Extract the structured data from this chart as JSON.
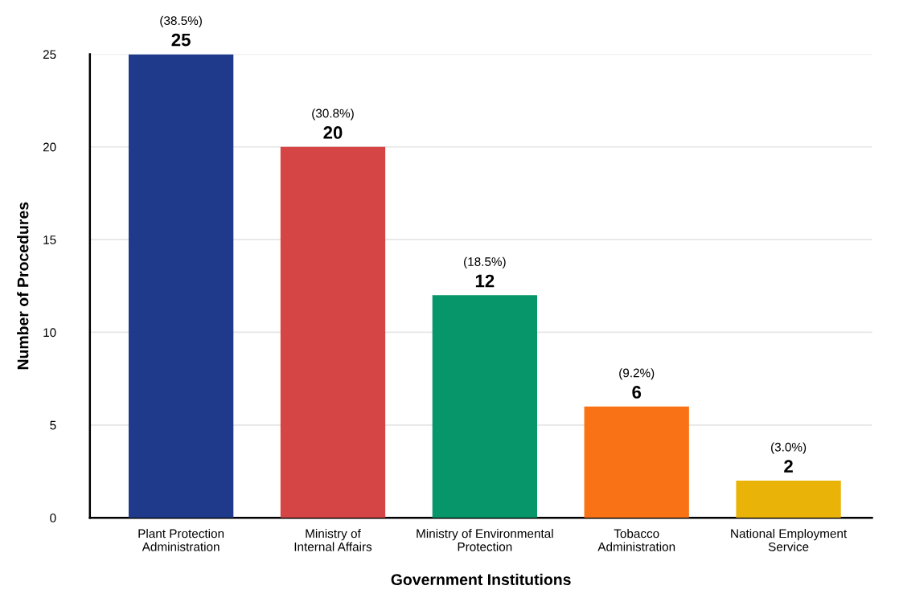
{
  "chart_data": {
    "type": "bar",
    "xlabel": "Government Institutions",
    "ylabel": "Number of Procedures",
    "categories": [
      "Plant Protection\nAdministration",
      "Ministry of\nInternal Affairs",
      "Ministry of Environmental\nProtection",
      "Tobacco\nAdministration",
      "National Employment\nService"
    ],
    "values": [
      25,
      20,
      12,
      6,
      2
    ],
    "colors": [
      "#1f3a8a",
      "#d64545",
      "#079669",
      "#f97316",
      "#eab308"
    ],
    "ylim": [
      0,
      25
    ],
    "yticks": [
      0,
      5,
      10,
      15,
      20,
      25
    ],
    "grid": "y",
    "data_labels": true,
    "legend": false,
    "annotations": [
      {
        "text": "(38.5%)",
        "x": "Plant Protection\nAdministration",
        "y": 25
      },
      {
        "text": "(30.8%)",
        "x": "Ministry of\nInternal Affairs",
        "y": 20
      },
      {
        "text": "(18.5%)",
        "x": "Ministry of Environmental\nProtection",
        "y": 12
      },
      {
        "text": "(9.2%)",
        "x": "Tobacco\nAdministration",
        "y": 6
      },
      {
        "text": "(3.0%)",
        "x": "National Employment\nService",
        "y": 2
      }
    ]
  }
}
